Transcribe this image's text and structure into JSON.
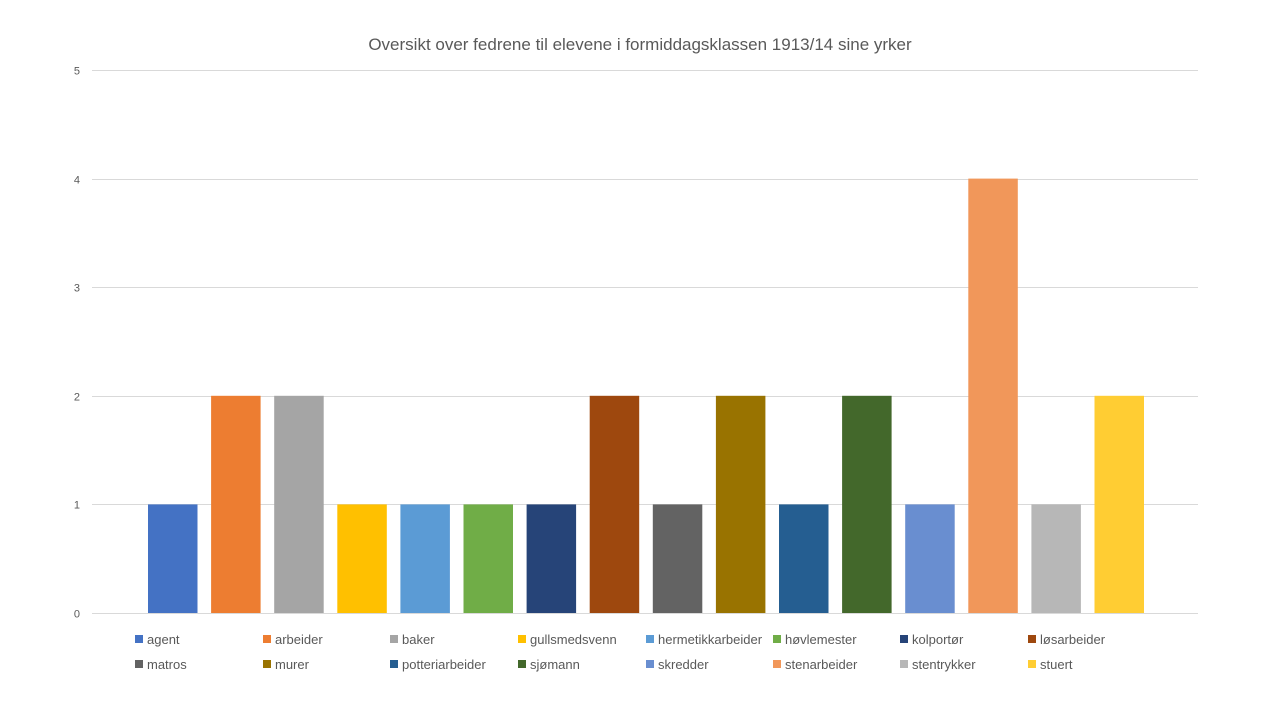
{
  "chart_data": {
    "type": "bar",
    "title": "Oversikt over fedrene til elevene i formiddagsklassen 1913/14 sine yrker",
    "xlabel": "",
    "ylabel": "",
    "ylim": [
      0,
      5
    ],
    "yticks": [
      0,
      1,
      2,
      3,
      4,
      5
    ],
    "grid": true,
    "legend_position": "bottom",
    "series": [
      {
        "name": "agent",
        "value": 1,
        "color": "#4472C4"
      },
      {
        "name": "arbeider",
        "value": 2,
        "color": "#ED7D31"
      },
      {
        "name": "baker",
        "value": 2,
        "color": "#A5A5A5"
      },
      {
        "name": "gullsmedsvenn",
        "value": 1,
        "color": "#FFC000"
      },
      {
        "name": "hermetikkarbeider",
        "value": 1,
        "color": "#5B9BD5"
      },
      {
        "name": "høvlemester",
        "value": 1,
        "color": "#70AD47"
      },
      {
        "name": "kolportør",
        "value": 1,
        "color": "#264478"
      },
      {
        "name": "løsarbeider",
        "value": 2,
        "color": "#9E480E"
      },
      {
        "name": "matros",
        "value": 1,
        "color": "#636363"
      },
      {
        "name": "murer",
        "value": 2,
        "color": "#997300"
      },
      {
        "name": "potteriarbeider",
        "value": 1,
        "color": "#255E91"
      },
      {
        "name": "sjømann",
        "value": 2,
        "color": "#43682B"
      },
      {
        "name": "skredder",
        "value": 1,
        "color": "#698ED0"
      },
      {
        "name": "stenarbeider",
        "value": 4,
        "color": "#F1975A"
      },
      {
        "name": "stentrykker",
        "value": 1,
        "color": "#B7B7B7"
      },
      {
        "name": "stuert",
        "value": 2,
        "color": "#FFCD33"
      }
    ]
  }
}
